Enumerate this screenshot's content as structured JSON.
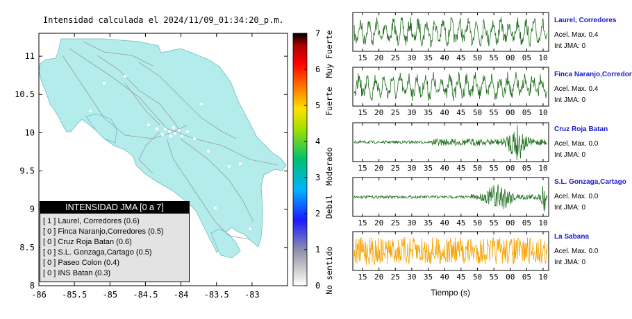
{
  "chart_data": [
    {
      "type": "map",
      "title": "Intensidad calculada el 2024/11/09_01:34:20_p.m.",
      "x_ticks": [
        "-86",
        "-85.5",
        "-85",
        "-84.5",
        "-84",
        "-83.5",
        "-83"
      ],
      "y_ticks": [
        "11",
        "10.5",
        "10",
        "9.5",
        "9",
        "8.5",
        "8"
      ],
      "xlim": [
        -86,
        -82.5
      ],
      "ylim": [
        8,
        11.3
      ],
      "region_color": "#b4ecec",
      "legend": {
        "title": "INTENSIDAD JMA [0 a 7]",
        "items": [
          "[ 1 ] Laurel, Corredores (0.6)",
          "[ 0 ] Finca Naranjo,Corredores (0.5)",
          "[ 0 ] Cruz Roja Batan (0.6)",
          "[ 0 ] S.L. Gonzaga,Cartago (0.5)",
          "[ 0 ] Paseo Colon (0.4)",
          "[ 0 ] INS Batan (0.3)"
        ]
      },
      "colorbar": {
        "ticks": [
          "0",
          "1",
          "2",
          "3",
          "4",
          "5",
          "6",
          "7"
        ],
        "range": [
          0,
          7
        ],
        "categories": [
          "No sentido",
          "Debil",
          "Moderado",
          "Fuerte",
          "Muy Fuerte"
        ]
      }
    },
    {
      "type": "line",
      "xlabel": "Tiempo (s)",
      "x_ticks": [
        "15",
        "20",
        "25",
        "30",
        "35",
        "40",
        "45",
        "50",
        "55",
        "00",
        "05",
        "10"
      ],
      "stations": [
        {
          "name": "Laurel, Corredores",
          "accel": "Acel. Max. 0.4",
          "intensity": "Int JMA: 0",
          "color": "#1e6e1e"
        },
        {
          "name": "Finca Naranjo,Corredores",
          "accel": "Acel. Max. 0.4",
          "intensity": "Int JMA: 0",
          "color": "#1e6e1e"
        },
        {
          "name": "Cruz Roja Batan",
          "accel": "Acel. Max. 0.0",
          "intensity": "Int JMA: 0",
          "color": "#1e6e1e"
        },
        {
          "name": "S.L. Gonzaga,Cartago",
          "accel": "Acel. Max. 0.0",
          "intensity": "Int JMA: 0",
          "color": "#1e6e1e"
        },
        {
          "name": "La Sabana",
          "accel": "Acel. Max. 0.0",
          "intensity": "Int JMA: 0",
          "color": "#f5a200"
        }
      ]
    }
  ]
}
